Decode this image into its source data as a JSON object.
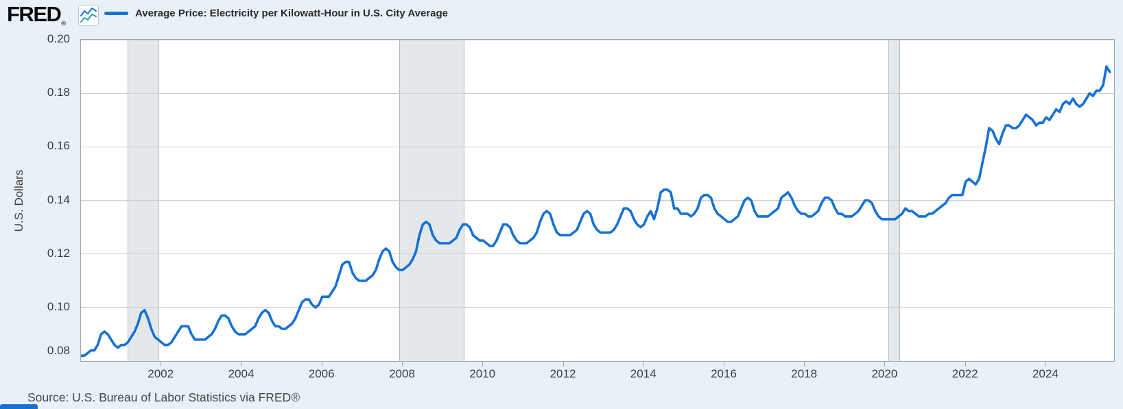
{
  "header": {
    "logo": "FRED",
    "logo_reg": "®",
    "legend_label": "Average Price: Electricity per Kilowatt-Hour in U.S. City Average"
  },
  "footer": {
    "source": "Source: U.S. Bureau of Labor Statistics via FRED®"
  },
  "colors": {
    "line": "#1671d3",
    "page_bg": "#e8f1f8",
    "plot_bg": "#ffffff",
    "grid": "#cdcdcd",
    "plot_border": "#a3a9ad",
    "recession_fill": "#e4e8ea",
    "recession_edge": "#b4babd",
    "icon_line_blue": "#1671d3",
    "icon_line_teal": "#2ba394"
  },
  "chart_data": {
    "type": "line",
    "title": "Average Price: Electricity per Kilowatt-Hour in U.S. City Average",
    "ylabel": "U.S. Dollars",
    "frequency": "monthly",
    "start": "2000-01",
    "end": "2025-08",
    "xlim": [
      2000,
      2025.69
    ],
    "ylim": [
      0.08,
      0.2
    ],
    "yticks": [
      0.08,
      0.1,
      0.12,
      0.14,
      0.16,
      0.18,
      0.2
    ],
    "xticks": [
      2002,
      2004,
      2006,
      2008,
      2010,
      2012,
      2014,
      2016,
      2018,
      2020,
      2022,
      2024
    ],
    "grid": "horizontal",
    "legend_position": "top",
    "recessions": [
      {
        "start": "2001-03",
        "end": "2001-11"
      },
      {
        "start": "2007-12",
        "end": "2009-06"
      },
      {
        "start": "2020-02",
        "end": "2020-04"
      }
    ],
    "series": [
      {
        "name": "Average Price: Electricity per Kilowatt-Hour in U.S. City Average",
        "color": "#1671d3",
        "values": [
          0.082,
          0.082,
          0.083,
          0.084,
          0.084,
          0.086,
          0.09,
          0.091,
          0.09,
          0.088,
          0.086,
          0.085,
          0.086,
          0.086,
          0.087,
          0.089,
          0.091,
          0.094,
          0.098,
          0.099,
          0.096,
          0.092,
          0.089,
          0.088,
          0.087,
          0.086,
          0.086,
          0.087,
          0.089,
          0.091,
          0.093,
          0.093,
          0.093,
          0.09,
          0.088,
          0.088,
          0.088,
          0.088,
          0.089,
          0.09,
          0.092,
          0.095,
          0.097,
          0.097,
          0.096,
          0.093,
          0.091,
          0.09,
          0.09,
          0.09,
          0.091,
          0.092,
          0.093,
          0.096,
          0.098,
          0.099,
          0.098,
          0.095,
          0.093,
          0.093,
          0.092,
          0.092,
          0.093,
          0.094,
          0.096,
          0.099,
          0.102,
          0.103,
          0.103,
          0.101,
          0.1,
          0.101,
          0.104,
          0.104,
          0.104,
          0.106,
          0.108,
          0.112,
          0.116,
          0.117,
          0.117,
          0.113,
          0.111,
          0.11,
          0.11,
          0.11,
          0.111,
          0.112,
          0.114,
          0.118,
          0.121,
          0.122,
          0.121,
          0.117,
          0.115,
          0.114,
          0.114,
          0.115,
          0.116,
          0.118,
          0.121,
          0.127,
          0.131,
          0.132,
          0.131,
          0.127,
          0.125,
          0.124,
          0.124,
          0.124,
          0.124,
          0.125,
          0.126,
          0.129,
          0.131,
          0.131,
          0.13,
          0.127,
          0.126,
          0.125,
          0.125,
          0.124,
          0.123,
          0.123,
          0.125,
          0.128,
          0.131,
          0.131,
          0.13,
          0.127,
          0.125,
          0.124,
          0.124,
          0.124,
          0.125,
          0.126,
          0.128,
          0.132,
          0.135,
          0.136,
          0.135,
          0.131,
          0.128,
          0.127,
          0.127,
          0.127,
          0.127,
          0.128,
          0.129,
          0.132,
          0.135,
          0.136,
          0.135,
          0.131,
          0.129,
          0.128,
          0.128,
          0.128,
          0.128,
          0.129,
          0.131,
          0.134,
          0.137,
          0.137,
          0.136,
          0.133,
          0.131,
          0.13,
          0.131,
          0.134,
          0.136,
          0.133,
          0.137,
          0.143,
          0.144,
          0.144,
          0.143,
          0.137,
          0.137,
          0.135,
          0.135,
          0.135,
          0.134,
          0.135,
          0.137,
          0.141,
          0.142,
          0.142,
          0.141,
          0.137,
          0.135,
          0.134,
          0.133,
          0.132,
          0.132,
          0.133,
          0.134,
          0.137,
          0.14,
          0.141,
          0.14,
          0.136,
          0.134,
          0.134,
          0.134,
          0.134,
          0.135,
          0.136,
          0.137,
          0.141,
          0.142,
          0.143,
          0.141,
          0.138,
          0.136,
          0.135,
          0.135,
          0.134,
          0.134,
          0.135,
          0.136,
          0.139,
          0.141,
          0.141,
          0.14,
          0.137,
          0.135,
          0.135,
          0.134,
          0.134,
          0.134,
          0.135,
          0.136,
          0.138,
          0.14,
          0.14,
          0.139,
          0.136,
          0.134,
          0.133,
          0.133,
          0.133,
          0.133,
          0.133,
          0.134,
          0.135,
          0.137,
          0.136,
          0.136,
          0.135,
          0.134,
          0.134,
          0.134,
          0.135,
          0.135,
          0.136,
          0.137,
          0.138,
          0.139,
          0.141,
          0.142,
          0.142,
          0.142,
          0.142,
          0.147,
          0.148,
          0.147,
          0.146,
          0.148,
          0.154,
          0.16,
          0.167,
          0.166,
          0.163,
          0.161,
          0.165,
          0.168,
          0.168,
          0.167,
          0.167,
          0.168,
          0.17,
          0.172,
          0.171,
          0.17,
          0.168,
          0.169,
          0.169,
          0.171,
          0.17,
          0.172,
          0.174,
          0.173,
          0.176,
          0.177,
          0.176,
          0.178,
          0.176,
          0.175,
          0.176,
          0.178,
          0.18,
          0.179,
          0.181,
          0.181,
          0.183,
          0.19,
          0.188
        ]
      }
    ]
  }
}
